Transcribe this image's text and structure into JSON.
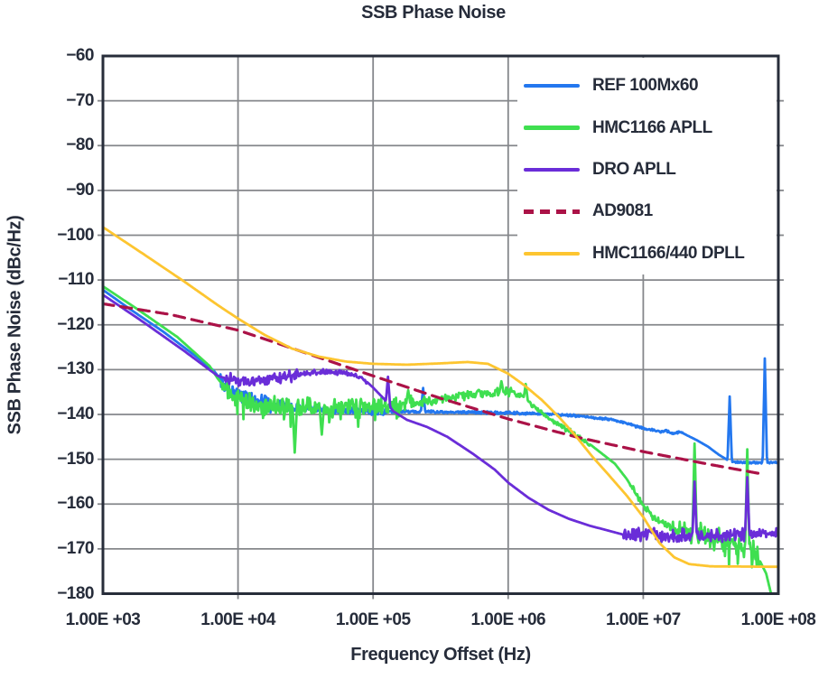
{
  "title": "SSB Phase Noise",
  "x_axis": {
    "label": "Frequency Offset (Hz)",
    "tick_labels": [
      "1.00E +03",
      "1.00E +04",
      "1.00E +05",
      "1.00E +06",
      "1.00E +07",
      "1.00E +08"
    ]
  },
  "y_axis": {
    "label": "SSB Phase Noise (dBc/Hz)",
    "tick_labels": [
      "−60",
      "−70",
      "−80",
      "−90",
      "−100",
      "−110",
      "−120",
      "−130",
      "−140",
      "−150",
      "−160",
      "−170",
      "−180"
    ]
  },
  "colors": {
    "text": "#262c3a",
    "grid": "#85878b",
    "frame": "#272d3a",
    "background": "#ffffff"
  },
  "chart_data": {
    "type": "line",
    "x_scale": "log10",
    "xlim": [
      1000,
      100000000
    ],
    "ylim": [
      -180,
      -60
    ],
    "grid": true,
    "legend_position": "top-right",
    "xlabel": "Frequency Offset (Hz)",
    "ylabel": "SSB Phase Noise (dBc/Hz)",
    "series": [
      {
        "name": "REF 100Mx60",
        "color": "#2377ef",
        "style": "solid",
        "points": [
          [
            3.0,
            -112.2
          ],
          [
            3.2,
            -116.5
          ],
          [
            3.45,
            -121.6
          ],
          [
            3.7,
            -127.3
          ],
          [
            3.82,
            -130.2
          ],
          [
            3.88,
            -132.6
          ],
          [
            3.97,
            -134.8
          ],
          [
            4.1,
            -136.6
          ],
          [
            4.25,
            -137.8
          ],
          [
            4.45,
            -138.5
          ],
          [
            4.7,
            -139.0
          ],
          [
            5.0,
            -139.3
          ],
          [
            5.6,
            -139.5
          ],
          [
            6.1,
            -139.7
          ],
          [
            6.35,
            -140.0
          ],
          [
            6.55,
            -140.4
          ],
          [
            6.75,
            -141.1
          ],
          [
            6.9,
            -142.2
          ],
          [
            7.0,
            -143.1
          ],
          [
            7.08,
            -143.5
          ],
          [
            7.13,
            -143.9
          ],
          [
            7.17,
            -143.6
          ],
          [
            7.22,
            -144.3
          ],
          [
            7.27,
            -143.8
          ],
          [
            7.32,
            -144.6
          ],
          [
            7.4,
            -145.8
          ],
          [
            7.48,
            -147.2
          ],
          [
            7.56,
            -149.0
          ],
          [
            7.63,
            -150.3
          ],
          [
            7.7,
            -150.7
          ],
          [
            8.0,
            -150.8
          ]
        ],
        "noise": [
          [
            3.85,
            4.45,
            1.6
          ],
          [
            4.45,
            5.1,
            0.8
          ],
          [
            5.1,
            6.2,
            0.3
          ],
          [
            6.2,
            7.3,
            0.25
          ],
          [
            7.63,
            8.0,
            0.2
          ]
        ],
        "spikes": [
          [
            5.37,
            -134.1
          ],
          [
            7.64,
            -136.0
          ],
          [
            7.9,
            -127.5
          ]
        ]
      },
      {
        "name": "HMC1166 APLL",
        "color": "#3fdf50",
        "style": "solid",
        "points": [
          [
            3.0,
            -111.4
          ],
          [
            3.25,
            -116.4
          ],
          [
            3.55,
            -122.7
          ],
          [
            3.79,
            -129.2
          ],
          [
            3.85,
            -132.0
          ],
          [
            3.93,
            -135.0
          ],
          [
            4.05,
            -137.2
          ],
          [
            4.3,
            -138.2
          ],
          [
            4.6,
            -138.5
          ],
          [
            4.9,
            -138.4
          ],
          [
            5.15,
            -138.0
          ],
          [
            5.35,
            -137.3
          ],
          [
            5.55,
            -136.3
          ],
          [
            5.75,
            -135.4
          ],
          [
            6.0,
            -135.1
          ],
          [
            6.1,
            -135.9
          ],
          [
            6.18,
            -138.0
          ],
          [
            6.28,
            -140.4
          ],
          [
            6.45,
            -143.6
          ],
          [
            6.62,
            -147.0
          ],
          [
            6.79,
            -151.0
          ],
          [
            6.88,
            -154.5
          ],
          [
            6.95,
            -158.0
          ],
          [
            7.03,
            -161.5
          ],
          [
            7.12,
            -164.0
          ],
          [
            7.25,
            -165.8
          ],
          [
            7.45,
            -167.0
          ],
          [
            7.6,
            -168.5
          ],
          [
            7.72,
            -169.5
          ],
          [
            7.8,
            -170.5
          ],
          [
            7.86,
            -172.5
          ],
          [
            7.91,
            -175.5
          ],
          [
            7.95,
            -180.5
          ]
        ],
        "noise": [
          [
            3.88,
            5.3,
            2.0
          ],
          [
            5.3,
            6.05,
            1.0
          ],
          [
            6.05,
            6.6,
            0.5
          ],
          [
            6.9,
            7.2,
            0.8
          ],
          [
            7.2,
            7.86,
            2.2
          ]
        ],
        "spikes": [
          [
            4.42,
            -148.5
          ],
          [
            4.62,
            -144.5
          ],
          [
            5.26,
            -134.6
          ],
          [
            5.95,
            -132.6
          ],
          [
            6.13,
            -133.2
          ],
          [
            7.38,
            -146.5
          ],
          [
            7.77,
            -147.8
          ]
        ]
      },
      {
        "name": "DRO APLL",
        "color": "#6a2dd8",
        "style": "solid",
        "points": [
          [
            3.0,
            -113.3
          ],
          [
            3.3,
            -119.4
          ],
          [
            3.6,
            -125.8
          ],
          [
            3.85,
            -131.4
          ],
          [
            3.95,
            -132.3
          ],
          [
            4.1,
            -132.3
          ],
          [
            4.3,
            -131.8
          ],
          [
            4.5,
            -130.9
          ],
          [
            4.65,
            -130.4
          ],
          [
            4.8,
            -130.8
          ],
          [
            4.92,
            -131.8
          ],
          [
            5.0,
            -134.0
          ],
          [
            5.08,
            -136.5
          ],
          [
            5.15,
            -139.3
          ],
          [
            5.25,
            -141.2
          ],
          [
            5.4,
            -142.8
          ],
          [
            5.55,
            -145.0
          ],
          [
            5.74,
            -148.8
          ],
          [
            5.9,
            -152.3
          ],
          [
            6.0,
            -155.2
          ],
          [
            6.15,
            -158.6
          ],
          [
            6.3,
            -161.3
          ],
          [
            6.45,
            -163.3
          ],
          [
            6.6,
            -164.8
          ],
          [
            6.75,
            -166.0
          ],
          [
            6.85,
            -166.8
          ],
          [
            7.2,
            -167.2
          ],
          [
            7.6,
            -166.8
          ],
          [
            8.0,
            -166.3
          ]
        ],
        "noise": [
          [
            3.9,
            4.45,
            1.2
          ],
          [
            4.45,
            4.95,
            0.5
          ],
          [
            6.85,
            8.0,
            1.4
          ]
        ],
        "spikes": [
          [
            5.11,
            -131.6
          ],
          [
            7.38,
            -155.0
          ],
          [
            7.77,
            -154.0
          ]
        ]
      },
      {
        "name": "AD9081",
        "color": "#ab1247",
        "style": "dashed",
        "points": [
          [
            3.0,
            -115.3
          ],
          [
            3.5,
            -117.7
          ],
          [
            4.0,
            -121.2
          ],
          [
            4.3,
            -124.2
          ],
          [
            4.6,
            -127.3
          ],
          [
            5.0,
            -131.4
          ],
          [
            5.5,
            -136.4
          ],
          [
            6.0,
            -141.0
          ],
          [
            6.5,
            -145.0
          ],
          [
            7.0,
            -148.3
          ],
          [
            7.5,
            -151.2
          ],
          [
            7.9,
            -153.4
          ]
        ],
        "noise": [],
        "spikes": []
      },
      {
        "name": "HMC1166/440 DPLL",
        "color": "#fdc530",
        "style": "solid",
        "points": [
          [
            3.0,
            -98.2
          ],
          [
            3.3,
            -104.2
          ],
          [
            3.6,
            -110.3
          ],
          [
            3.85,
            -115.6
          ],
          [
            4.0,
            -118.6
          ],
          [
            4.2,
            -122.3
          ],
          [
            4.4,
            -125.3
          ],
          [
            4.6,
            -127.1
          ],
          [
            4.8,
            -128.2
          ],
          [
            5.0,
            -128.7
          ],
          [
            5.25,
            -128.9
          ],
          [
            5.5,
            -128.6
          ],
          [
            5.7,
            -128.3
          ],
          [
            5.85,
            -128.7
          ],
          [
            6.0,
            -130.9
          ],
          [
            6.12,
            -133.5
          ],
          [
            6.25,
            -136.8
          ],
          [
            6.38,
            -140.7
          ],
          [
            6.5,
            -144.8
          ],
          [
            6.62,
            -149.3
          ],
          [
            6.75,
            -153.7
          ],
          [
            6.88,
            -158.2
          ],
          [
            7.0,
            -162.9
          ],
          [
            7.12,
            -168.7
          ],
          [
            7.23,
            -171.9
          ],
          [
            7.34,
            -173.4
          ],
          [
            7.5,
            -173.9
          ],
          [
            8.0,
            -174.0
          ]
        ],
        "noise": [],
        "spikes": []
      }
    ]
  }
}
